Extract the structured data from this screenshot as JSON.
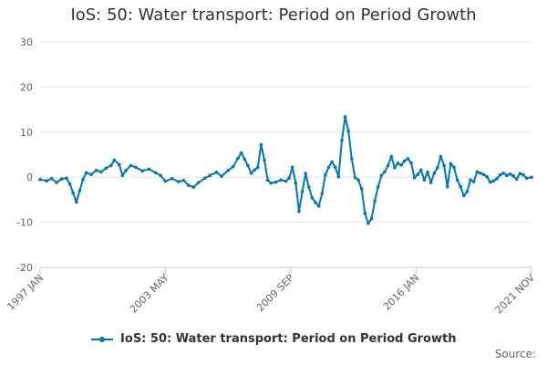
{
  "chart_data": {
    "type": "line",
    "title": "IoS: 50: Water transport: Period on Period Growth",
    "xlabel": "",
    "ylabel": "",
    "ylim": [
      -20,
      30
    ],
    "yticks": [
      "30",
      "20",
      "10",
      "0",
      "-10",
      "-20"
    ],
    "ytick_values": [
      30,
      20,
      10,
      0,
      -10,
      -20
    ],
    "x_tick_labels": [
      "1997 JAN",
      "2003 MAY",
      "2009 SEP",
      "2016 JAN",
      "2021 NOV"
    ],
    "x_tick_positions": [
      0,
      76,
      152,
      228,
      298
    ],
    "x_count": 299,
    "series": [
      {
        "name": "IoS: 50: Water transport: Period on Period Growth",
        "color": "#0076c0",
        "points": [
          [
            0,
            -0.5
          ],
          [
            4,
            -0.8
          ],
          [
            7,
            -0.3
          ],
          [
            10,
            -1.2
          ],
          [
            13,
            -0.4
          ],
          [
            16,
            -0.2
          ],
          [
            18,
            -1.5
          ],
          [
            20,
            -3.5
          ],
          [
            22,
            -5.5
          ],
          [
            24,
            -3.0
          ],
          [
            26,
            -0.5
          ],
          [
            28,
            1.0
          ],
          [
            31,
            0.6
          ],
          [
            34,
            1.5
          ],
          [
            37,
            1.2
          ],
          [
            40,
            2.0
          ],
          [
            43,
            2.6
          ],
          [
            45,
            3.8
          ],
          [
            48,
            2.8
          ],
          [
            50,
            0.4
          ],
          [
            52,
            1.5
          ],
          [
            55,
            2.6
          ],
          [
            58,
            2.2
          ],
          [
            62,
            1.4
          ],
          [
            66,
            1.8
          ],
          [
            70,
            1.0
          ],
          [
            73,
            0.4
          ],
          [
            76,
            -0.9
          ],
          [
            80,
            -0.3
          ],
          [
            84,
            -1.0
          ],
          [
            87,
            -0.7
          ],
          [
            90,
            -1.8
          ],
          [
            93,
            -2.2
          ],
          [
            96,
            -1.2
          ],
          [
            100,
            -0.2
          ],
          [
            103,
            0.4
          ],
          [
            107,
            1.1
          ],
          [
            110,
            0.2
          ],
          [
            114,
            1.5
          ],
          [
            117,
            2.3
          ],
          [
            120,
            4.2
          ],
          [
            122,
            5.4
          ],
          [
            124,
            4.0
          ],
          [
            126,
            2.6
          ],
          [
            128,
            0.9
          ],
          [
            130,
            1.6
          ],
          [
            132,
            2.2
          ],
          [
            134,
            7.2
          ],
          [
            136,
            3.8
          ],
          [
            138,
            -0.6
          ],
          [
            140,
            -1.3
          ],
          [
            143,
            -1.1
          ],
          [
            146,
            -0.6
          ],
          [
            149,
            -0.9
          ],
          [
            151,
            -0.2
          ],
          [
            153,
            2.2
          ],
          [
            155,
            -1.3
          ],
          [
            157,
            -7.6
          ],
          [
            159,
            -3.2
          ],
          [
            161,
            0.8
          ],
          [
            163,
            -2.2
          ],
          [
            165,
            -4.6
          ],
          [
            167,
            -5.6
          ],
          [
            169,
            -6.4
          ],
          [
            171,
            -3.6
          ],
          [
            173,
            0.5
          ],
          [
            175,
            2.2
          ],
          [
            177,
            3.4
          ],
          [
            179,
            2.2
          ],
          [
            181,
            0.1
          ],
          [
            183,
            8.2
          ],
          [
            185,
            13.4
          ],
          [
            187,
            10.2
          ],
          [
            189,
            4.1
          ],
          [
            191,
            -0.1
          ],
          [
            193,
            -0.6
          ],
          [
            195,
            -2.6
          ],
          [
            197,
            -8.0
          ],
          [
            199,
            -10.2
          ],
          [
            201,
            -9.2
          ],
          [
            203,
            -5.2
          ],
          [
            205,
            -2.1
          ],
          [
            207,
            0.4
          ],
          [
            209,
            1.2
          ],
          [
            211,
            2.6
          ],
          [
            213,
            4.6
          ],
          [
            215,
            2.1
          ],
          [
            217,
            3.1
          ],
          [
            219,
            2.7
          ],
          [
            221,
            3.6
          ],
          [
            223,
            4.1
          ],
          [
            225,
            3.2
          ],
          [
            227,
            -0.1
          ],
          [
            229,
            0.6
          ],
          [
            231,
            1.6
          ],
          [
            233,
            -0.6
          ],
          [
            235,
            1.1
          ],
          [
            237,
            -1.2
          ],
          [
            239,
            0.9
          ],
          [
            241,
            2.1
          ],
          [
            243,
            4.6
          ],
          [
            245,
            2.6
          ],
          [
            247,
            -2.1
          ],
          [
            249,
            3.0
          ],
          [
            251,
            2.2
          ],
          [
            253,
            -0.6
          ],
          [
            255,
            -2.1
          ],
          [
            257,
            -4.1
          ],
          [
            259,
            -3.2
          ],
          [
            261,
            -0.6
          ],
          [
            263,
            -1.0
          ],
          [
            265,
            1.2
          ],
          [
            267,
            0.9
          ],
          [
            269,
            0.6
          ],
          [
            271,
            0.1
          ],
          [
            273,
            -1.1
          ],
          [
            275,
            -0.8
          ],
          [
            277,
            -0.3
          ],
          [
            279,
            0.5
          ],
          [
            281,
            0.9
          ]
        ]
      }
    ]
  },
  "chart_tail": [
    [
      283,
      0.4
    ],
    [
      285,
      0.7
    ],
    [
      287,
      0.3
    ],
    [
      289,
      -0.4
    ],
    [
      291,
      0.8
    ],
    [
      293,
      0.5
    ],
    [
      295,
      -0.2
    ],
    [
      298,
      0.0
    ]
  ],
  "source_label": "Source:"
}
